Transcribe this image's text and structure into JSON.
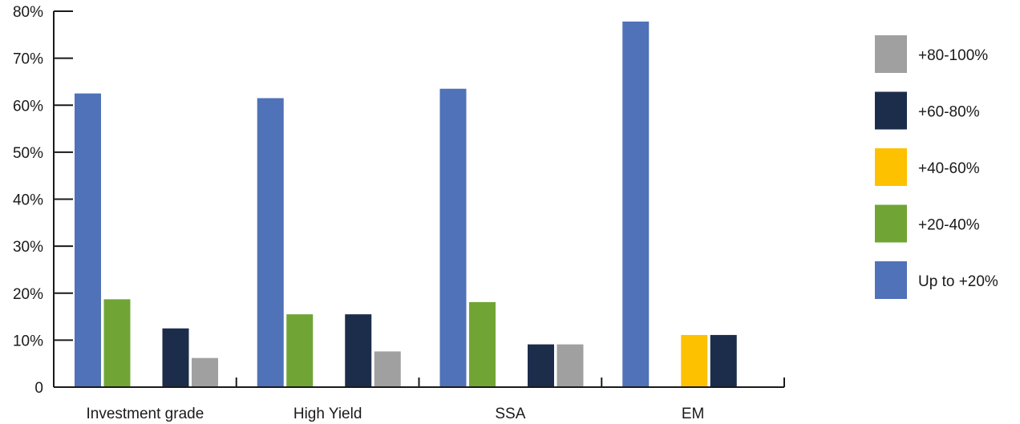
{
  "chart_data": {
    "type": "bar",
    "categories": [
      "Investment grade",
      "High Yield",
      "SSA",
      "EM"
    ],
    "ylim": [
      0,
      80
    ],
    "yticks": [
      0,
      10,
      20,
      30,
      40,
      50,
      60,
      70,
      80
    ],
    "ytick_labels": [
      "0",
      "10%",
      "20%",
      "30%",
      "40%",
      "50%",
      "60%",
      "70%",
      "80%"
    ],
    "legend_position": "right",
    "series": [
      {
        "name": "Up to +20%",
        "color": "#4f72b8",
        "values": [
          62.5,
          61.5,
          63.5,
          77.8
        ]
      },
      {
        "name": "+20-40%",
        "color": "#70a535",
        "values": [
          18.7,
          15.5,
          18.1,
          0
        ]
      },
      {
        "name": "+40-60%",
        "color": "#fdc100",
        "values": [
          0,
          0,
          0,
          11.1
        ]
      },
      {
        "name": "+60-80%",
        "color": "#1c2d4c",
        "values": [
          12.5,
          15.5,
          9.1,
          11.1
        ]
      },
      {
        "name": "+80-100%",
        "color": "#a0a0a0",
        "values": [
          6.2,
          7.6,
          9.1,
          0
        ]
      }
    ],
    "legend_order": [
      "+80-100%",
      "+60-80%",
      "+40-60%",
      "+20-40%",
      "Up to +20%"
    ]
  }
}
